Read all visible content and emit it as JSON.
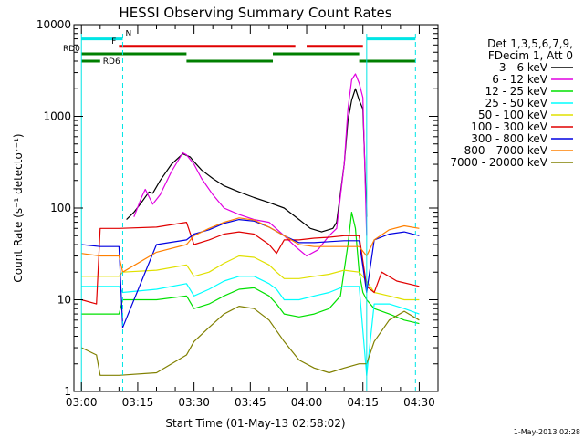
{
  "chart_data": {
    "type": "line",
    "title": "HESSI Observing Summary Count Rates",
    "xlabel": "Start Time (01-May-13 02:58:02)",
    "ylabel": "Count Rate (s⁻¹ detector⁻¹)",
    "x_unit": "minutes after 03:00 UT",
    "xlim": [
      -2,
      95
    ],
    "ylim": [
      1,
      10000
    ],
    "y_scale": "log",
    "x_tick_labels": [
      {
        "x": 0,
        "label": "03:00"
      },
      {
        "x": 15,
        "label": "03:15"
      },
      {
        "x": 30,
        "label": "03:30"
      },
      {
        "x": 45,
        "label": "03:45"
      },
      {
        "x": 60,
        "label": "04:00"
      },
      {
        "x": 75,
        "label": "04:15"
      },
      {
        "x": 90,
        "label": "04:30"
      }
    ],
    "y_tick_labels": [
      {
        "y": 1,
        "label": "1"
      },
      {
        "y": 10,
        "label": "10"
      },
      {
        "y": 100,
        "label": "100"
      },
      {
        "y": 1000,
        "label": "1000"
      },
      {
        "y": 10000,
        "label": "10000"
      }
    ],
    "legend_header": [
      "Det 1,3,5,6,7,9,",
      "FDecim 1, Att 0"
    ],
    "legend_position": "right",
    "timestamp": "1-May-2013 02:28",
    "vertical_markers": [
      {
        "x": 0,
        "color": "#00e5e5",
        "style": "solid"
      },
      {
        "x": 11,
        "color": "#00e5e5",
        "style": "dashed"
      },
      {
        "x": 76,
        "color": "#00e5e5",
        "style": "solid"
      },
      {
        "x": 89,
        "color": "#00e5e5",
        "style": "dashed"
      }
    ],
    "flag_bars": [
      {
        "label": "N",
        "color": "#00e5e5",
        "y": 7000,
        "segments": [
          [
            0,
            11
          ],
          [
            76,
            89
          ]
        ]
      },
      {
        "label": "F",
        "color": "#e00000",
        "y": 5800,
        "segments": [
          [
            10,
            57
          ],
          [
            60,
            75
          ]
        ]
      },
      {
        "label": "RD0",
        "color": "#007f00",
        "y": 4800,
        "segments": [
          [
            0,
            28
          ],
          [
            51,
            74
          ]
        ]
      },
      {
        "label": "RD6",
        "color": "#007f00",
        "y": 4000,
        "segments": [
          [
            0,
            5
          ],
          [
            28,
            51
          ],
          [
            74,
            89
          ]
        ]
      }
    ],
    "series": [
      {
        "name": "3 - 6 keV",
        "color": "#000000",
        "x": [
          12,
          14,
          16,
          18,
          19,
          21,
          24,
          27,
          29,
          30,
          32,
          35,
          38,
          42,
          46,
          50,
          54,
          58,
          61,
          64,
          67,
          68,
          70,
          71,
          72,
          73,
          74,
          75,
          76
        ],
        "y": [
          75,
          90,
          115,
          150,
          145,
          200,
          300,
          390,
          360,
          320,
          260,
          210,
          175,
          150,
          130,
          115,
          100,
          75,
          60,
          55,
          60,
          70,
          300,
          900,
          1500,
          2000,
          1500,
          1200,
          80
        ]
      },
      {
        "name": "6 - 12 keV",
        "color": "#e000e0",
        "x": [
          14,
          16,
          17,
          19,
          21,
          24,
          27,
          28,
          30,
          32,
          35,
          38,
          42,
          46,
          50,
          54,
          57,
          60,
          63,
          66,
          68,
          70,
          71,
          72,
          73,
          74,
          75,
          76
        ],
        "y": [
          80,
          130,
          160,
          110,
          140,
          250,
          400,
          380,
          300,
          210,
          140,
          100,
          85,
          75,
          70,
          50,
          38,
          30,
          35,
          50,
          60,
          300,
          1200,
          2500,
          2900,
          2300,
          1600,
          50
        ]
      },
      {
        "name": "12 - 25 keV",
        "color": "#00e000",
        "x": [
          0,
          10,
          11,
          20,
          28,
          30,
          34,
          38,
          42,
          46,
          50,
          52,
          54,
          58,
          62,
          66,
          69,
          71,
          72,
          73,
          74,
          75,
          76,
          78,
          82,
          86,
          90
        ],
        "y": [
          7,
          7,
          10,
          10,
          11,
          8,
          9,
          11,
          13,
          13.5,
          11,
          9,
          7,
          6.5,
          7,
          8,
          11,
          40,
          90,
          60,
          20,
          12,
          10,
          8,
          7,
          6,
          5.5
        ]
      },
      {
        "name": "25 - 50 keV",
        "color": "#00ffff",
        "x": [
          0,
          10,
          11,
          20,
          28,
          30,
          34,
          38,
          42,
          46,
          50,
          52,
          54,
          58,
          62,
          66,
          70,
          74,
          76,
          78,
          82,
          86,
          90
        ],
        "y": [
          14,
          14,
          12,
          13,
          15,
          11,
          13,
          16,
          18,
          18,
          15,
          13,
          10,
          10,
          11,
          12,
          14,
          14,
          1.5,
          9,
          9,
          8,
          7
        ]
      },
      {
        "name": "50 - 100 keV",
        "color": "#e0e000",
        "x": [
          0,
          10,
          11,
          20,
          28,
          30,
          34,
          38,
          42,
          46,
          50,
          52,
          54,
          58,
          62,
          66,
          70,
          74,
          76,
          78,
          82,
          86,
          90
        ],
        "y": [
          18,
          18,
          20,
          21,
          24,
          18,
          20,
          25,
          30,
          29,
          24,
          20,
          17,
          17,
          18,
          19,
          21,
          20,
          16,
          12,
          11,
          10,
          10
        ]
      },
      {
        "name": "100 - 300 keV",
        "color": "#e00000",
        "x": [
          0,
          4,
          5,
          10,
          20,
          28,
          30,
          34,
          38,
          42,
          46,
          50,
          52,
          54,
          58,
          62,
          66,
          70,
          74,
          76,
          78,
          80,
          84,
          90
        ],
        "y": [
          10,
          9,
          60,
          60,
          62,
          70,
          40,
          45,
          52,
          55,
          52,
          40,
          32,
          45,
          45,
          47,
          48,
          50,
          50,
          14,
          12,
          20,
          16,
          14
        ]
      },
      {
        "name": "300 - 800 keV",
        "color": "#0000e0",
        "x": [
          0,
          5,
          10,
          11,
          20,
          28,
          30,
          34,
          38,
          42,
          46,
          50,
          54,
          58,
          62,
          66,
          70,
          74,
          76,
          78,
          82,
          86,
          90
        ],
        "y": [
          40,
          38,
          38,
          5,
          40,
          45,
          52,
          58,
          68,
          75,
          72,
          62,
          50,
          42,
          42,
          43,
          44,
          44,
          12,
          45,
          52,
          55,
          50
        ]
      },
      {
        "name": "800 - 7000 keV",
        "color": "#ff8000",
        "x": [
          0,
          5,
          10,
          11,
          20,
          28,
          30,
          34,
          38,
          42,
          46,
          50,
          54,
          58,
          62,
          66,
          70,
          74,
          76,
          78,
          82,
          86,
          90
        ],
        "y": [
          32,
          30,
          30,
          20,
          33,
          40,
          50,
          60,
          70,
          78,
          74,
          62,
          50,
          40,
          38,
          38,
          38,
          38,
          30,
          45,
          58,
          64,
          60
        ]
      },
      {
        "name": "7000 - 20000 keV",
        "color": "#808000",
        "x": [
          0,
          4,
          5,
          10,
          20,
          28,
          30,
          34,
          38,
          42,
          46,
          50,
          54,
          58,
          62,
          66,
          70,
          74,
          76,
          78,
          82,
          86,
          90
        ],
        "y": [
          3,
          2.5,
          1.5,
          1.5,
          1.6,
          2.5,
          3.5,
          5,
          7,
          8.5,
          8,
          6,
          3.5,
          2.2,
          1.8,
          1.6,
          1.8,
          2,
          2,
          3.5,
          6,
          7.5,
          6
        ]
      }
    ]
  }
}
